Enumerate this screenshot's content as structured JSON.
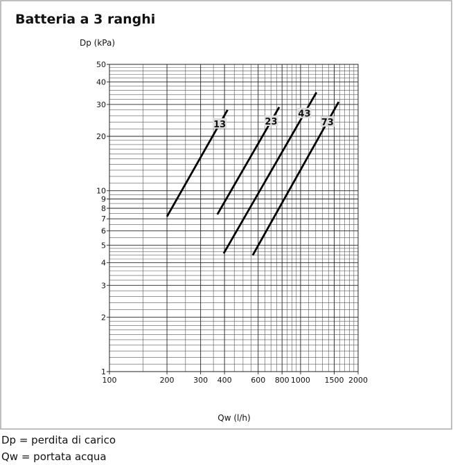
{
  "chart_data": {
    "type": "line",
    "title": "Batteria a 3 ranghi",
    "y_label": "Dp (kPa)",
    "x_label": "Qw (l/h)",
    "log_x": true,
    "log_y": true,
    "grid": true,
    "color": "#000000",
    "xlim": [
      100,
      2000
    ],
    "ylim": [
      1,
      50
    ],
    "xticks": [
      100,
      200,
      300,
      400,
      600,
      800,
      1000,
      1500,
      2000
    ],
    "yticks": [
      1,
      2,
      3,
      4,
      5,
      6,
      7,
      8,
      9,
      10,
      20,
      30,
      40,
      50
    ],
    "x_minor_grid": [
      150,
      250,
      350,
      450,
      500,
      550,
      650,
      700,
      750,
      850,
      900,
      950,
      1100,
      1200,
      1300,
      1400,
      1600,
      1700,
      1800,
      1900
    ],
    "y_minor_grid": [
      1.1,
      1.2,
      1.3,
      1.4,
      1.5,
      1.6,
      1.7,
      1.8,
      1.9,
      2.2,
      2.4,
      2.6,
      2.8,
      3.2,
      3.4,
      3.6,
      3.8,
      4.2,
      4.4,
      4.6,
      4.8,
      5.5,
      6.5,
      7.5,
      8.5,
      9.5,
      11,
      12,
      13,
      14,
      15,
      16,
      17,
      18,
      19,
      22,
      24,
      26,
      28,
      32,
      34,
      36,
      38,
      42,
      44,
      46,
      48
    ],
    "series": [
      {
        "name": "13",
        "x": [
          200,
          415
        ],
        "values": [
          7.2,
          28
        ]
      },
      {
        "name": "23",
        "x": [
          367,
          773
        ],
        "values": [
          7.4,
          29
        ]
      },
      {
        "name": "43",
        "x": [
          396,
          1211
        ],
        "values": [
          4.5,
          35
        ]
      },
      {
        "name": "73",
        "x": [
          562,
          1582
        ],
        "values": [
          4.4,
          31
        ]
      }
    ]
  },
  "notes": [
    "Dp = perdita di carico",
    "Qw = portata acqua"
  ]
}
